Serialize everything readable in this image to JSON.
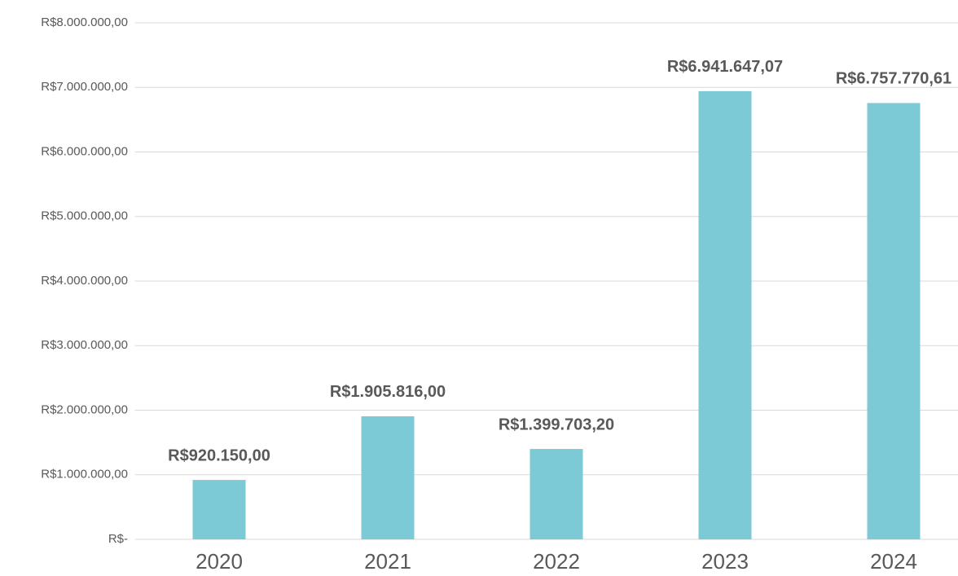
{
  "chart_data": {
    "type": "bar",
    "categories": [
      "2020",
      "2021",
      "2022",
      "2023",
      "2024"
    ],
    "values": [
      920150,
      1905816,
      1399703.2,
      6941647.07,
      6757770.61
    ],
    "value_labels": [
      "R$920.150,00",
      "R$1.905.816,00",
      "R$1.399.703,20",
      "R$6.941.647,07",
      "R$6.757.770,61"
    ],
    "color": "#7ccad6",
    "ylim": [
      0,
      8000000
    ],
    "yticks": [
      {
        "value": 0,
        "label": "R$-"
      },
      {
        "value": 1000000,
        "label": "R$1.000.000,00"
      },
      {
        "value": 2000000,
        "label": "R$2.000.000,00"
      },
      {
        "value": 3000000,
        "label": "R$3.000.000,00"
      },
      {
        "value": 4000000,
        "label": "R$4.000.000,00"
      },
      {
        "value": 5000000,
        "label": "R$5.000.000,00"
      },
      {
        "value": 6000000,
        "label": "R$6.000.000,00"
      },
      {
        "value": 7000000,
        "label": "R$7.000.000,00"
      },
      {
        "value": 8000000,
        "label": "R$8.000.000,00"
      }
    ],
    "grid": true
  }
}
